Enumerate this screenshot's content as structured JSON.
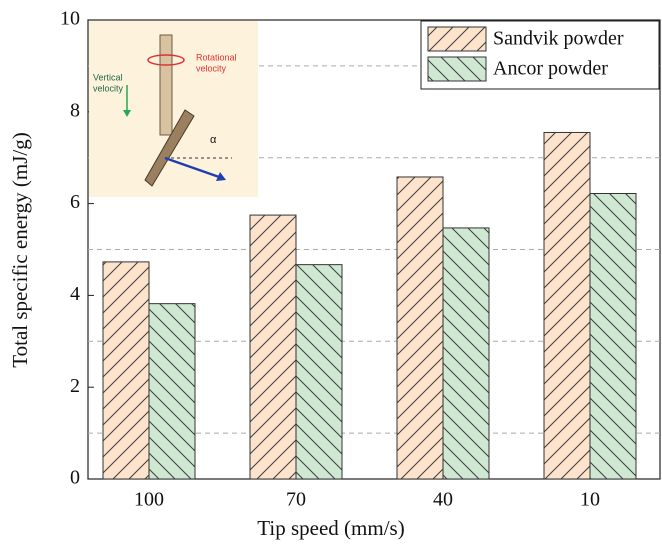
{
  "chart_data": {
    "type": "bar",
    "xlabel": "Tip speed (mm/s)",
    "ylabel": "Total specific energy (mJ/g)",
    "categories": [
      "100",
      "70",
      "40",
      "10"
    ],
    "series": [
      {
        "name": "Sandvik powder",
        "color": "#fde2cc",
        "hatch": "/",
        "values": [
          4.73,
          5.75,
          6.58,
          7.55
        ]
      },
      {
        "name": "Ancor powder",
        "color": "#cfe8d2",
        "hatch": "\\",
        "values": [
          3.82,
          4.67,
          5.47,
          6.22
        ]
      }
    ],
    "ylim": [
      0,
      10
    ],
    "yticks": [
      0,
      2,
      4,
      6,
      8,
      10
    ],
    "minor_yticks": [
      1,
      3,
      5,
      7,
      9
    ],
    "grid": true,
    "legend": "upper right",
    "annotations": [
      "Rotational",
      "velocity",
      "Vertical",
      "velocity",
      "α"
    ]
  }
}
